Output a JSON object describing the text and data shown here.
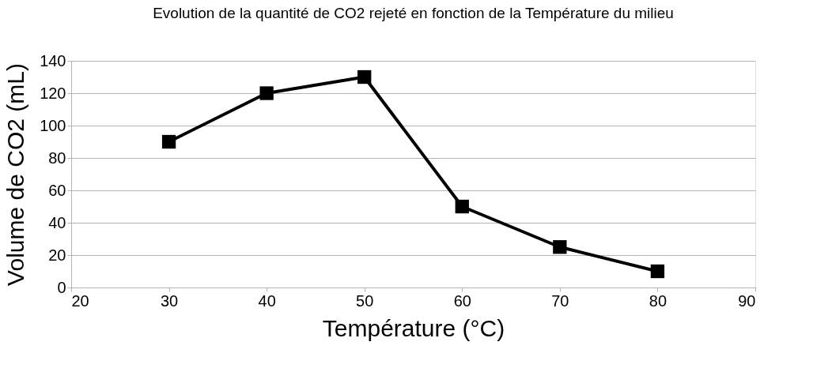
{
  "chart_data": {
    "type": "line",
    "title": "Evolution de la quantité de CO2 rejeté en fonction de la Température du milieu",
    "xlabel": "Température (°C)",
    "ylabel": "Volume de CO2 (mL)",
    "x": [
      30,
      40,
      50,
      60,
      70,
      80
    ],
    "series": [
      {
        "color": "#000000",
        "values": [
          90,
          120,
          130,
          50,
          25,
          10
        ]
      }
    ],
    "xlim": [
      20,
      90
    ],
    "xticks": [
      20,
      30,
      40,
      50,
      60,
      70,
      80,
      90
    ],
    "ylim": [
      0,
      140
    ],
    "yticks": [
      0,
      20,
      40,
      60,
      80,
      100,
      120,
      140
    ],
    "grid": "y",
    "marker": "square",
    "line_style": "solid"
  }
}
